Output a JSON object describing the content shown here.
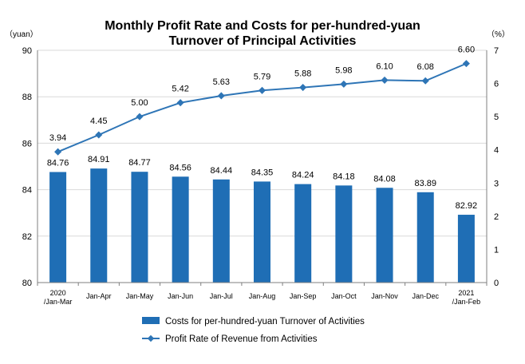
{
  "chart_data": {
    "type": "bar+line",
    "title_lines": [
      "Monthly Profit Rate and Costs for per-hundred-yuan",
      "Turnover of Principal Activities"
    ],
    "left_unit": "（yuan）",
    "right_unit": "（%）",
    "categories": [
      [
        "2020",
        "/Jan-Mar"
      ],
      [
        "Jan-Apr"
      ],
      [
        "Jan-May"
      ],
      [
        "Jan-Jun"
      ],
      [
        "Jan-Jul"
      ],
      [
        "Jan-Aug"
      ],
      [
        "Jan-Sep"
      ],
      [
        "Jan-Oct"
      ],
      [
        "Jan-Nov"
      ],
      [
        "Jan-Dec"
      ],
      [
        "2021",
        "/Jan-Feb"
      ]
    ],
    "series": [
      {
        "name": "Costs for per-hundred-yuan Turnover of  Activities",
        "type": "bar",
        "axis": "left",
        "color": "#1F6EB5",
        "values": [
          84.76,
          84.91,
          84.77,
          84.56,
          84.44,
          84.35,
          84.24,
          84.18,
          84.08,
          83.89,
          82.92
        ],
        "labels": [
          "84.76",
          "84.91",
          "84.77",
          "84.56",
          "84.44",
          "84.35",
          "84.24",
          "84.18",
          "84.08",
          "83.89",
          "82.92"
        ]
      },
      {
        "name": "Profit Rate of Revenue from Activities",
        "type": "line",
        "axis": "right",
        "color": "#2E75B6",
        "values": [
          3.94,
          4.45,
          5.0,
          5.42,
          5.63,
          5.79,
          5.88,
          5.98,
          6.1,
          6.08,
          6.6
        ],
        "labels": [
          "3.94",
          "4.45",
          "5.00",
          "5.42",
          "5.63",
          "5.79",
          "5.88",
          "5.98",
          "6.10",
          "6.08",
          "6.60"
        ]
      }
    ],
    "left_axis": {
      "min": 80,
      "max": 90,
      "ticks": [
        "80",
        "82",
        "84",
        "86",
        "88",
        "90"
      ]
    },
    "right_axis": {
      "min": 0,
      "max": 7,
      "ticks": [
        "0",
        "1",
        "2",
        "3",
        "4",
        "5",
        "6",
        "7"
      ]
    },
    "grid": "horizontal",
    "legend_position": "bottom"
  }
}
